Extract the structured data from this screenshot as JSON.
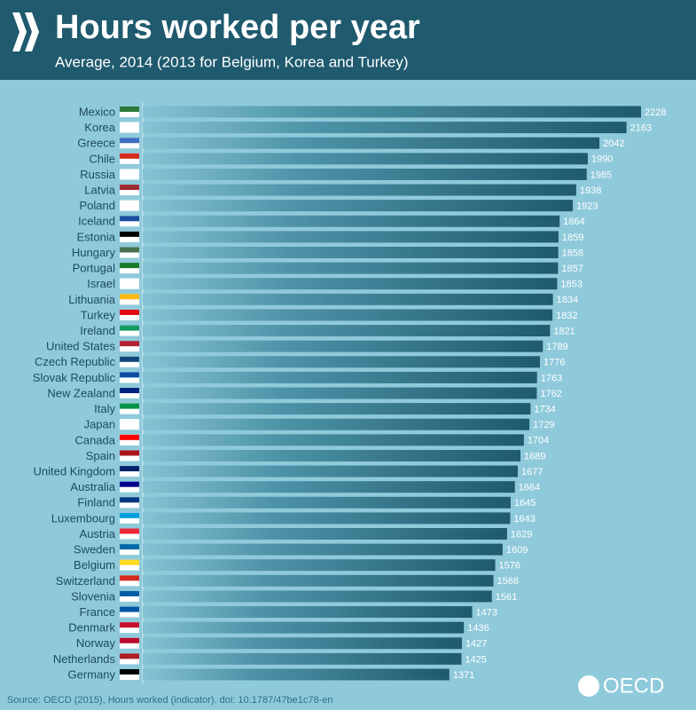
{
  "chart_data": {
    "type": "bar",
    "orientation": "horizontal",
    "title": "Hours worked per year",
    "subtitle": "Average, 2014 (2013 for Belgium, Korea and Turkey)",
    "source": "Source: OECD (2015), Hours worked (indicator). doi: 10.1787/47be1c78-en",
    "logo": "OECD",
    "color": "#1f5a6e",
    "categories": [
      "Mexico",
      "Korea",
      "Greece",
      "Chile",
      "Russia",
      "Latvia",
      "Poland",
      "Iceland",
      "Estonia",
      "Hungary",
      "Portugal",
      "Israel",
      "Lithuania",
      "Turkey",
      "Ireland",
      "United States",
      "Czech Republic",
      "Slovak Republic",
      "New Zealand",
      "Italy",
      "Japan",
      "Canada",
      "Spain",
      "United Kingdom",
      "Australia",
      "Finland",
      "Luxembourg",
      "Austria",
      "Sweden",
      "Belgium",
      "Switzerland",
      "Slovenia",
      "France",
      "Denmark",
      "Norway",
      "Netherlands",
      "Germany"
    ],
    "values": [
      2228,
      2163,
      2042,
      1990,
      1985,
      1938,
      1923,
      1864,
      1859,
      1858,
      1857,
      1853,
      1834,
      1832,
      1821,
      1789,
      1776,
      1763,
      1762,
      1734,
      1729,
      1704,
      1689,
      1677,
      1664,
      1645,
      1643,
      1629,
      1609,
      1576,
      1568,
      1561,
      1473,
      1436,
      1427,
      1425,
      1371
    ]
  }
}
